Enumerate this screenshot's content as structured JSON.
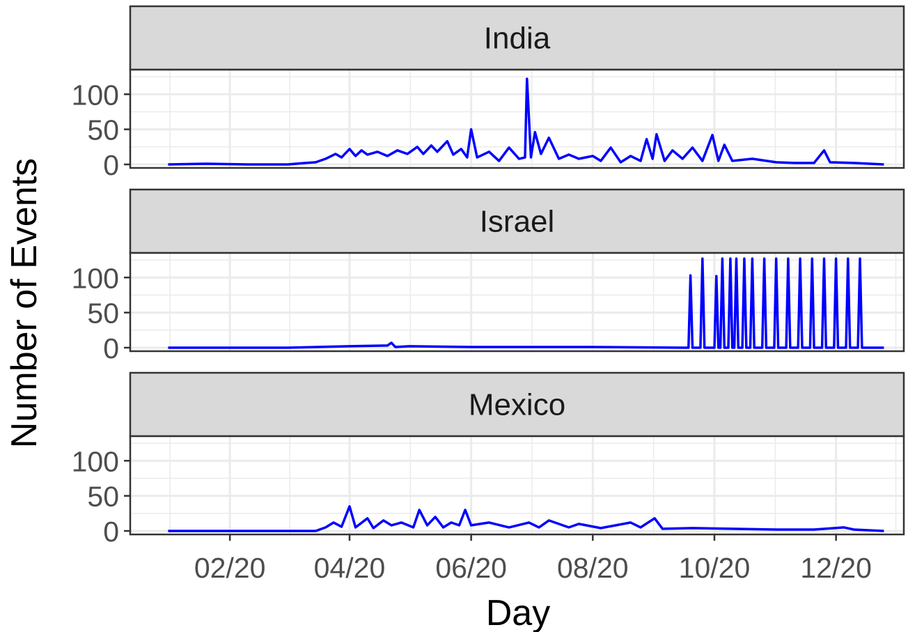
{
  "chart_data": {
    "type": "line",
    "xlabel": "Day",
    "ylabel": "Number of Events",
    "x_ticks": [
      "02/20",
      "04/20",
      "06/20",
      "08/20",
      "10/20",
      "12/20"
    ],
    "x_tick_dates": [
      "2020-02-01",
      "2020-04-01",
      "2020-06-01",
      "2020-08-01",
      "2020-10-01",
      "2020-12-01"
    ],
    "x_range": [
      "2019-12-13",
      "2021-01-04"
    ],
    "y_ticks": [
      0,
      50,
      100
    ],
    "ylim": [
      -5,
      135
    ],
    "grid": true,
    "line_color": "#0000ff",
    "facets": [
      {
        "name": "India",
        "series": [
          {
            "x": "2020-01-01",
            "y": 0
          },
          {
            "x": "2020-01-20",
            "y": 1
          },
          {
            "x": "2020-02-10",
            "y": 0
          },
          {
            "x": "2020-03-01",
            "y": 0
          },
          {
            "x": "2020-03-10",
            "y": 2
          },
          {
            "x": "2020-03-15",
            "y": 3
          },
          {
            "x": "2020-03-20",
            "y": 8
          },
          {
            "x": "2020-03-25",
            "y": 15
          },
          {
            "x": "2020-03-28",
            "y": 10
          },
          {
            "x": "2020-04-01",
            "y": 22
          },
          {
            "x": "2020-04-04",
            "y": 12
          },
          {
            "x": "2020-04-07",
            "y": 20
          },
          {
            "x": "2020-04-10",
            "y": 14
          },
          {
            "x": "2020-04-15",
            "y": 18
          },
          {
            "x": "2020-04-20",
            "y": 12
          },
          {
            "x": "2020-04-25",
            "y": 20
          },
          {
            "x": "2020-04-30",
            "y": 15
          },
          {
            "x": "2020-05-05",
            "y": 25
          },
          {
            "x": "2020-05-08",
            "y": 15
          },
          {
            "x": "2020-05-12",
            "y": 27
          },
          {
            "x": "2020-05-15",
            "y": 18
          },
          {
            "x": "2020-05-20",
            "y": 33
          },
          {
            "x": "2020-05-23",
            "y": 14
          },
          {
            "x": "2020-05-27",
            "y": 22
          },
          {
            "x": "2020-05-30",
            "y": 10
          },
          {
            "x": "2020-06-01",
            "y": 50
          },
          {
            "x": "2020-06-04",
            "y": 10
          },
          {
            "x": "2020-06-10",
            "y": 18
          },
          {
            "x": "2020-06-15",
            "y": 5
          },
          {
            "x": "2020-06-20",
            "y": 24
          },
          {
            "x": "2020-06-25",
            "y": 8
          },
          {
            "x": "2020-06-28",
            "y": 10
          },
          {
            "x": "2020-06-29",
            "y": 122
          },
          {
            "x": "2020-07-01",
            "y": 10
          },
          {
            "x": "2020-07-03",
            "y": 46
          },
          {
            "x": "2020-07-06",
            "y": 15
          },
          {
            "x": "2020-07-10",
            "y": 38
          },
          {
            "x": "2020-07-15",
            "y": 8
          },
          {
            "x": "2020-07-20",
            "y": 14
          },
          {
            "x": "2020-07-25",
            "y": 8
          },
          {
            "x": "2020-08-01",
            "y": 12
          },
          {
            "x": "2020-08-05",
            "y": 5
          },
          {
            "x": "2020-08-10",
            "y": 24
          },
          {
            "x": "2020-08-15",
            "y": 3
          },
          {
            "x": "2020-08-20",
            "y": 12
          },
          {
            "x": "2020-08-25",
            "y": 5
          },
          {
            "x": "2020-08-28",
            "y": 36
          },
          {
            "x": "2020-08-31",
            "y": 8
          },
          {
            "x": "2020-09-02",
            "y": 43
          },
          {
            "x": "2020-09-06",
            "y": 5
          },
          {
            "x": "2020-09-10",
            "y": 20
          },
          {
            "x": "2020-09-15",
            "y": 8
          },
          {
            "x": "2020-09-20",
            "y": 24
          },
          {
            "x": "2020-09-25",
            "y": 5
          },
          {
            "x": "2020-09-30",
            "y": 42
          },
          {
            "x": "2020-10-03",
            "y": 5
          },
          {
            "x": "2020-10-06",
            "y": 28
          },
          {
            "x": "2020-10-10",
            "y": 5
          },
          {
            "x": "2020-10-20",
            "y": 8
          },
          {
            "x": "2020-11-01",
            "y": 3
          },
          {
            "x": "2020-11-10",
            "y": 2
          },
          {
            "x": "2020-11-20",
            "y": 2
          },
          {
            "x": "2020-11-25",
            "y": 20
          },
          {
            "x": "2020-11-28",
            "y": 3
          },
          {
            "x": "2020-12-10",
            "y": 2
          },
          {
            "x": "2020-12-25",
            "y": 0
          }
        ]
      },
      {
        "name": "Israel",
        "series": [
          {
            "x": "2020-01-01",
            "y": 0
          },
          {
            "x": "2020-03-01",
            "y": 0
          },
          {
            "x": "2020-04-01",
            "y": 2
          },
          {
            "x": "2020-04-20",
            "y": 3
          },
          {
            "x": "2020-04-22",
            "y": 7
          },
          {
            "x": "2020-04-24",
            "y": 1
          },
          {
            "x": "2020-05-01",
            "y": 2
          },
          {
            "x": "2020-06-01",
            "y": 1
          },
          {
            "x": "2020-08-01",
            "y": 1
          },
          {
            "x": "2020-09-15",
            "y": 0
          },
          {
            "x": "2020-09-18",
            "y": 0
          },
          {
            "x": "2020-09-19",
            "y": 103
          },
          {
            "x": "2020-09-20",
            "y": 0
          },
          {
            "x": "2020-09-24",
            "y": 0
          },
          {
            "x": "2020-09-25",
            "y": 127
          },
          {
            "x": "2020-09-26",
            "y": 0
          },
          {
            "x": "2020-10-01",
            "y": 0
          },
          {
            "x": "2020-10-02",
            "y": 102
          },
          {
            "x": "2020-10-03",
            "y": 0
          },
          {
            "x": "2020-10-04",
            "y": 0
          },
          {
            "x": "2020-10-05",
            "y": 127
          },
          {
            "x": "2020-10-06",
            "y": 0
          },
          {
            "x": "2020-10-08",
            "y": 0
          },
          {
            "x": "2020-10-09",
            "y": 127
          },
          {
            "x": "2020-10-10",
            "y": 0
          },
          {
            "x": "2020-10-11",
            "y": 0
          },
          {
            "x": "2020-10-12",
            "y": 127
          },
          {
            "x": "2020-10-13",
            "y": 0
          },
          {
            "x": "2020-10-15",
            "y": 0
          },
          {
            "x": "2020-10-16",
            "y": 127
          },
          {
            "x": "2020-10-17",
            "y": 0
          },
          {
            "x": "2020-10-19",
            "y": 0
          },
          {
            "x": "2020-10-20",
            "y": 127
          },
          {
            "x": "2020-10-21",
            "y": 0
          },
          {
            "x": "2020-10-25",
            "y": 0
          },
          {
            "x": "2020-10-26",
            "y": 127
          },
          {
            "x": "2020-10-27",
            "y": 0
          },
          {
            "x": "2020-10-31",
            "y": 0
          },
          {
            "x": "2020-11-01",
            "y": 127
          },
          {
            "x": "2020-11-02",
            "y": 0
          },
          {
            "x": "2020-11-06",
            "y": 0
          },
          {
            "x": "2020-11-07",
            "y": 127
          },
          {
            "x": "2020-11-08",
            "y": 0
          },
          {
            "x": "2020-11-12",
            "y": 0
          },
          {
            "x": "2020-11-13",
            "y": 127
          },
          {
            "x": "2020-11-14",
            "y": 0
          },
          {
            "x": "2020-11-18",
            "y": 0
          },
          {
            "x": "2020-11-19",
            "y": 127
          },
          {
            "x": "2020-11-20",
            "y": 0
          },
          {
            "x": "2020-11-24",
            "y": 0
          },
          {
            "x": "2020-11-25",
            "y": 127
          },
          {
            "x": "2020-11-26",
            "y": 0
          },
          {
            "x": "2020-11-30",
            "y": 0
          },
          {
            "x": "2020-12-01",
            "y": 127
          },
          {
            "x": "2020-12-02",
            "y": 0
          },
          {
            "x": "2020-12-06",
            "y": 0
          },
          {
            "x": "2020-12-07",
            "y": 127
          },
          {
            "x": "2020-12-08",
            "y": 0
          },
          {
            "x": "2020-12-12",
            "y": 0
          },
          {
            "x": "2020-12-13",
            "y": 127
          },
          {
            "x": "2020-12-14",
            "y": 0
          },
          {
            "x": "2020-12-25",
            "y": 0
          }
        ]
      },
      {
        "name": "Mexico",
        "series": [
          {
            "x": "2020-01-01",
            "y": 0
          },
          {
            "x": "2020-03-15",
            "y": 0
          },
          {
            "x": "2020-03-20",
            "y": 5
          },
          {
            "x": "2020-03-24",
            "y": 12
          },
          {
            "x": "2020-03-28",
            "y": 6
          },
          {
            "x": "2020-04-01",
            "y": 35
          },
          {
            "x": "2020-04-04",
            "y": 5
          },
          {
            "x": "2020-04-10",
            "y": 18
          },
          {
            "x": "2020-04-13",
            "y": 4
          },
          {
            "x": "2020-04-18",
            "y": 15
          },
          {
            "x": "2020-04-22",
            "y": 8
          },
          {
            "x": "2020-04-27",
            "y": 12
          },
          {
            "x": "2020-05-03",
            "y": 5
          },
          {
            "x": "2020-05-06",
            "y": 30
          },
          {
            "x": "2020-05-10",
            "y": 8
          },
          {
            "x": "2020-05-14",
            "y": 20
          },
          {
            "x": "2020-05-18",
            "y": 5
          },
          {
            "x": "2020-05-22",
            "y": 12
          },
          {
            "x": "2020-05-26",
            "y": 8
          },
          {
            "x": "2020-05-29",
            "y": 30
          },
          {
            "x": "2020-06-01",
            "y": 8
          },
          {
            "x": "2020-06-10",
            "y": 12
          },
          {
            "x": "2020-06-20",
            "y": 5
          },
          {
            "x": "2020-06-30",
            "y": 12
          },
          {
            "x": "2020-07-05",
            "y": 5
          },
          {
            "x": "2020-07-10",
            "y": 15
          },
          {
            "x": "2020-07-20",
            "y": 5
          },
          {
            "x": "2020-07-25",
            "y": 10
          },
          {
            "x": "2020-08-05",
            "y": 4
          },
          {
            "x": "2020-08-20",
            "y": 12
          },
          {
            "x": "2020-08-25",
            "y": 5
          },
          {
            "x": "2020-09-01",
            "y": 18
          },
          {
            "x": "2020-09-05",
            "y": 3
          },
          {
            "x": "2020-09-20",
            "y": 4
          },
          {
            "x": "2020-10-10",
            "y": 3
          },
          {
            "x": "2020-11-01",
            "y": 2
          },
          {
            "x": "2020-11-20",
            "y": 2
          },
          {
            "x": "2020-12-05",
            "y": 5
          },
          {
            "x": "2020-12-10",
            "y": 2
          },
          {
            "x": "2020-12-25",
            "y": 0
          }
        ]
      }
    ]
  }
}
